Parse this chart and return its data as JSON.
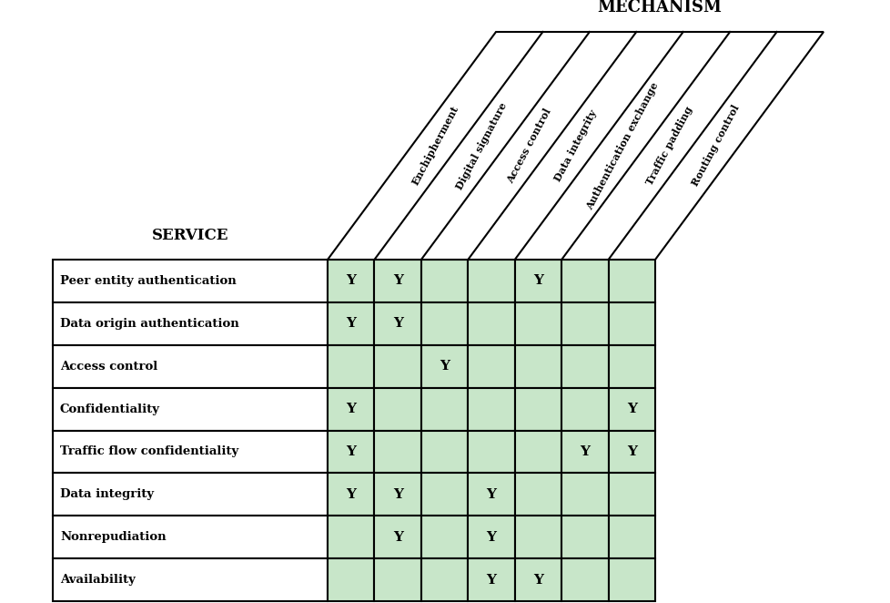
{
  "title_mechanism": "MECHANISM",
  "title_service": "SERVICE",
  "columns": [
    "Enchipherment",
    "Digital signature",
    "Access control",
    "Data integrity",
    "Authentication exchange",
    "Traffic padding",
    "Routing control"
  ],
  "rows": [
    "Peer entity authentication",
    "Data origin authentication",
    "Access control",
    "Confidentiality",
    "Traffic flow confidentiality",
    "Data integrity",
    "Nonrepudiation",
    "Availability"
  ],
  "marks": [
    [
      1,
      1,
      0,
      0,
      1,
      0,
      0
    ],
    [
      1,
      1,
      0,
      0,
      0,
      0,
      0
    ],
    [
      0,
      0,
      1,
      0,
      0,
      0,
      0
    ],
    [
      1,
      0,
      0,
      0,
      0,
      0,
      1
    ],
    [
      1,
      0,
      0,
      0,
      0,
      1,
      1
    ],
    [
      1,
      1,
      0,
      1,
      0,
      0,
      0
    ],
    [
      0,
      1,
      0,
      1,
      0,
      0,
      0
    ],
    [
      0,
      0,
      0,
      1,
      1,
      0,
      0
    ]
  ],
  "cell_color": "#c8e6c9",
  "background_color": "#ffffff",
  "border_color": "#000000",
  "text_color": "#000000"
}
